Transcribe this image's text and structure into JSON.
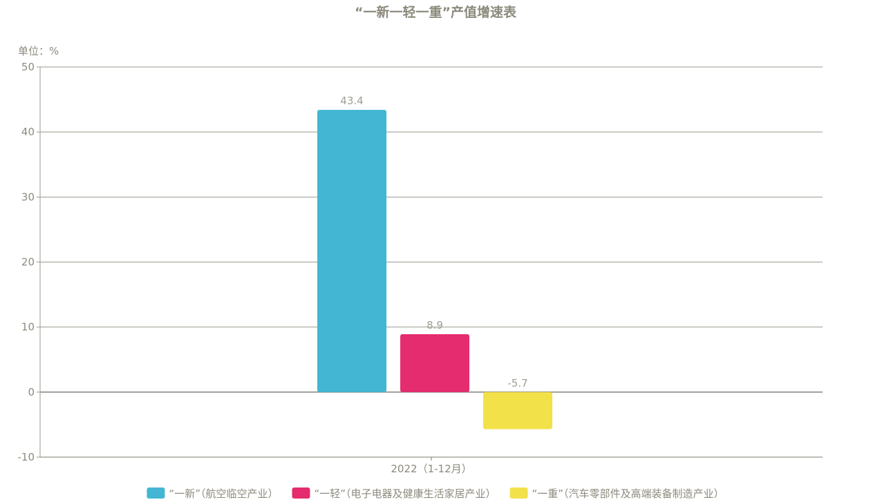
{
  "chart_data": {
    "type": "bar",
    "title": "“一新一轻一重”产值增速表",
    "unit_label": "单位：%",
    "categories": [
      "2022（1-12月）"
    ],
    "ylim": [
      -10,
      50
    ],
    "yticks": [
      50,
      40,
      30,
      20,
      10,
      0,
      -10
    ],
    "grid": true,
    "legend_position": "bottom",
    "series": [
      {
        "name": "“一新”（航空临空产业）",
        "values": [
          43.4
        ],
        "color": "#42b6d2"
      },
      {
        "name": "“一轻”（电子电器及健康生活家居产业）",
        "values": [
          8.9
        ],
        "color": "#e42c6e"
      },
      {
        "name": "“一重”（汽车零部件及高端装备制造产业）",
        "values": [
          -5.7
        ],
        "color": "#f3e14a"
      }
    ]
  }
}
